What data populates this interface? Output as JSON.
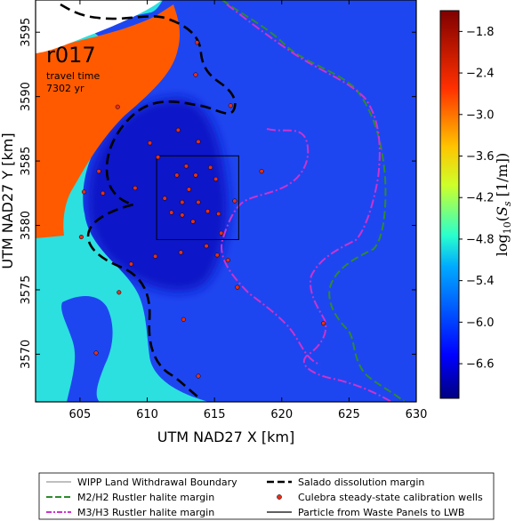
{
  "chart_data": {
    "type": "heatmap",
    "run_label": "r017",
    "travel_time_label": "travel time",
    "travel_time_value": "7302 yr",
    "xlabel": "UTM NAD27 X [km]",
    "ylabel": "UTM NAD27 Y [km]",
    "xlim": [
      601.7,
      630
    ],
    "ylim": [
      3566.3,
      3597.5
    ],
    "xticks": [
      605,
      610,
      615,
      620,
      625,
      630
    ],
    "yticks": [
      3570,
      3575,
      3580,
      3585,
      3590,
      3595
    ],
    "colorbar": {
      "label": "log10(Ss [1/m])",
      "range": [
        -7.1,
        -1.5
      ],
      "ticks": [
        -1.8,
        -2.4,
        -3.0,
        -3.6,
        -4.2,
        -4.8,
        -5.4,
        -6.0,
        -6.6
      ],
      "tick_labels": [
        "−1.8",
        "−2.4",
        "−3.0",
        "−3.6",
        "−4.2",
        "−4.8",
        "−5.4",
        "−6.0",
        "−6.6"
      ]
    },
    "field_levels": {
      "background": -6.1,
      "core_low": -6.7,
      "cyan_fringe": -5.0,
      "orange_region": -2.45
    },
    "wipp_boundary": {
      "x": [
        610.7,
        616.8
      ],
      "y": [
        3578.9,
        3585.4
      ]
    },
    "wells": [
      {
        "x": 613.7,
        "y": 3594.2
      },
      {
        "x": 613.6,
        "y": 3591.7
      },
      {
        "x": 607.8,
        "y": 3589.2
      },
      {
        "x": 616.2,
        "y": 3589.3
      },
      {
        "x": 612.3,
        "y": 3587.4
      },
      {
        "x": 610.2,
        "y": 3586.4
      },
      {
        "x": 613.8,
        "y": 3586.5
      },
      {
        "x": 610.8,
        "y": 3585.3
      },
      {
        "x": 606.4,
        "y": 3584.2
      },
      {
        "x": 612.9,
        "y": 3584.6
      },
      {
        "x": 614.7,
        "y": 3584.5
      },
      {
        "x": 618.5,
        "y": 3584.2
      },
      {
        "x": 612.2,
        "y": 3583.9
      },
      {
        "x": 613.6,
        "y": 3583.9
      },
      {
        "x": 615.1,
        "y": 3583.6
      },
      {
        "x": 609.1,
        "y": 3582.9
      },
      {
        "x": 613.1,
        "y": 3582.8
      },
      {
        "x": 605.3,
        "y": 3582.6
      },
      {
        "x": 606.7,
        "y": 3582.5
      },
      {
        "x": 611.3,
        "y": 3582.1
      },
      {
        "x": 612.6,
        "y": 3581.8
      },
      {
        "x": 613.8,
        "y": 3581.8
      },
      {
        "x": 616.5,
        "y": 3581.9
      },
      {
        "x": 611.8,
        "y": 3581.0
      },
      {
        "x": 612.6,
        "y": 3580.8
      },
      {
        "x": 614.5,
        "y": 3581.1
      },
      {
        "x": 615.3,
        "y": 3580.9
      },
      {
        "x": 613.4,
        "y": 3580.3
      },
      {
        "x": 615.5,
        "y": 3579.4
      },
      {
        "x": 605.1,
        "y": 3579.1
      },
      {
        "x": 614.4,
        "y": 3578.4
      },
      {
        "x": 612.5,
        "y": 3577.9
      },
      {
        "x": 615.2,
        "y": 3577.7
      },
      {
        "x": 610.6,
        "y": 3577.6
      },
      {
        "x": 616.0,
        "y": 3577.3
      },
      {
        "x": 608.8,
        "y": 3577.0
      },
      {
        "x": 616.7,
        "y": 3575.2
      },
      {
        "x": 607.9,
        "y": 3574.8
      },
      {
        "x": 612.7,
        "y": 3572.7
      },
      {
        "x": 623.1,
        "y": 3572.4
      },
      {
        "x": 606.2,
        "y": 3570.1
      },
      {
        "x": 613.8,
        "y": 3568.3
      }
    ],
    "legend": [
      {
        "label": "WIPP Land Withdrawal Boundary",
        "style": "thin-solid",
        "color": "#555555"
      },
      {
        "label": "M2/H2 Rustler halite margin",
        "style": "dashed",
        "color": "#2e8b2e"
      },
      {
        "label": "M3/H3 Rustler halite margin",
        "style": "dash-dot",
        "color": "#cc33cc"
      },
      {
        "label": "Salado dissolution margin",
        "style": "bold-dashed",
        "color": "#000000"
      },
      {
        "label": "Culebra steady-state calibration wells",
        "style": "marker",
        "color": "#e03020"
      },
      {
        "label": "Particle from Waste Panels to LWB",
        "style": "solid",
        "color": "#000000"
      }
    ],
    "grid": false,
    "legend_placement": "bottom"
  }
}
